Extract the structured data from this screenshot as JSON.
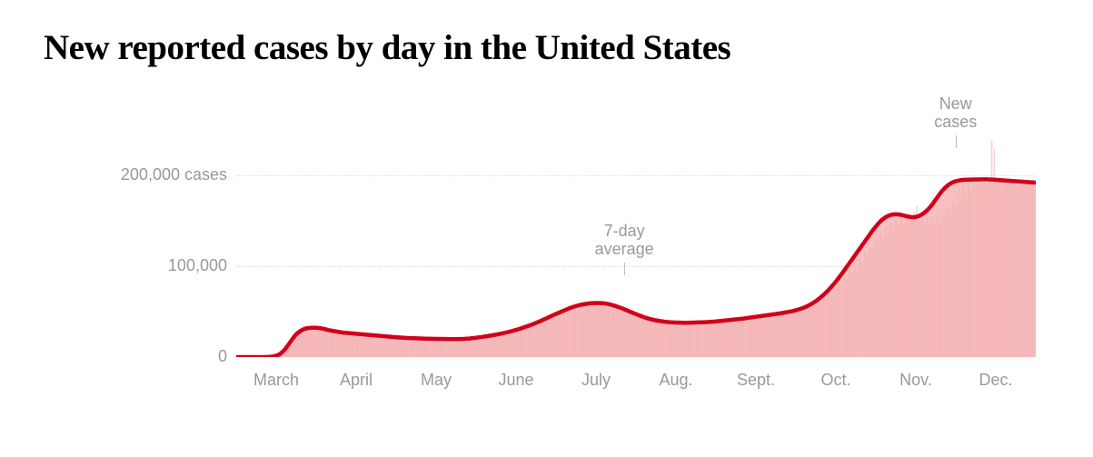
{
  "title": "New reported cases by day in the United States",
  "title_fontsize": 39,
  "chart": {
    "type": "area-line-with-bars",
    "background_color": "#ffffff",
    "grid_color": "#dcdcdc",
    "area_fill_color": "#f6bfc0",
    "bar_color": "#f3a9ab",
    "line_color": "#d0021b",
    "line_width": 4.5,
    "label_color": "#999999",
    "label_fontsize": 18,
    "ylim": [
      0,
      250000
    ],
    "yticks": [
      {
        "value": 0,
        "label": "0"
      },
      {
        "value": 100000,
        "label": "100,000"
      },
      {
        "value": 200000,
        "label": "200,000 cases"
      }
    ],
    "xlabels": [
      "March",
      "April",
      "May",
      "June",
      "July",
      "Aug.",
      "Sept.",
      "Oct.",
      "Nov.",
      "Dec."
    ],
    "annotations": [
      {
        "id": "avg",
        "text": "7-day\naverage",
        "x_index": 150,
        "y_value": 90000
      },
      {
        "id": "newcases",
        "text": "New\ncases",
        "x_index": 278,
        "y_value": 230000
      }
    ],
    "avg_series": [
      0,
      0,
      0,
      0,
      0,
      0,
      0,
      0,
      0,
      0,
      0,
      0,
      150,
      300,
      600,
      1200,
      2000,
      3500,
      6000,
      9000,
      13000,
      17000,
      21000,
      24500,
      27000,
      29000,
      30500,
      31500,
      32000,
      32200,
      32300,
      32200,
      32000,
      31500,
      31000,
      30200,
      29500,
      29000,
      28500,
      28000,
      27500,
      27000,
      26800,
      26500,
      26200,
      26000,
      25800,
      25500,
      25200,
      25000,
      24800,
      24500,
      24200,
      24000,
      23800,
      23500,
      23200,
      23000,
      22800,
      22500,
      22200,
      22000,
      21800,
      21600,
      21400,
      21200,
      21000,
      20900,
      20800,
      20700,
      20600,
      20500,
      20400,
      20300,
      20200,
      20150,
      20100,
      20050,
      20000,
      19950,
      19900,
      19850,
      19800,
      19800,
      19800,
      19800,
      19800,
      19900,
      20000,
      20200,
      20400,
      20700,
      21000,
      21400,
      21800,
      22200,
      22600,
      23000,
      23500,
      24000,
      24500,
      25000,
      25600,
      26200,
      26800,
      27500,
      28200,
      29000,
      29800,
      30600,
      31500,
      32500,
      33500,
      34500,
      35500,
      36600,
      37800,
      39000,
      40200,
      41500,
      42800,
      44200,
      45500,
      46800,
      48000,
      49200,
      50400,
      51600,
      52800,
      54000,
      55000,
      55900,
      56700,
      57400,
      58000,
      58500,
      58900,
      59200,
      59400,
      59500,
      59500,
      59400,
      59200,
      58800,
      58200,
      57500,
      56700,
      55800,
      54800,
      53700,
      52600,
      51400,
      50200,
      49000,
      47800,
      46700,
      45600,
      44500,
      43500,
      42600,
      41800,
      41100,
      40500,
      40000,
      39500,
      39100,
      38800,
      38500,
      38300,
      38100,
      38000,
      37900,
      37850,
      37800,
      37800,
      37850,
      37900,
      38000,
      38100,
      38200,
      38300,
      38400,
      38500,
      38700,
      38900,
      39100,
      39400,
      39700,
      40000,
      40300,
      40600,
      40900,
      41200,
      41500,
      41800,
      42100,
      42400,
      42800,
      43200,
      43600,
      44000,
      44400,
      44800,
      45200,
      45600,
      46000,
      46400,
      46800,
      47200,
      47600,
      48000,
      48500,
      49000,
      49500,
      50000,
      50600,
      51300,
      52100,
      53000,
      54000,
      55200,
      56500,
      58000,
      59700,
      61600,
      63700,
      66000,
      68500,
      71200,
      74100,
      77200,
      80500,
      84000,
      87700,
      91500,
      95500,
      99500,
      103500,
      107500,
      111500,
      115500,
      119500,
      123500,
      127500,
      131500,
      135500,
      139500,
      143000,
      146500,
      149500,
      152000,
      154000,
      155500,
      156500,
      157000,
      157200,
      157000,
      156500,
      155800,
      155000,
      154500,
      154000,
      154000,
      154500,
      155500,
      157000,
      159000,
      161500,
      164500,
      168000,
      172000,
      176000,
      180000,
      183500,
      186500,
      189000,
      191000,
      192500,
      193500,
      194200,
      194700,
      195000,
      195200,
      195300,
      195400,
      195450,
      195500,
      195550,
      195600,
      195600,
      195600,
      195500,
      195400,
      195200,
      195000,
      194800,
      194600,
      194400,
      194200,
      194000,
      193800,
      193600,
      193400,
      193200,
      193000,
      192800,
      192600,
      192400,
      192200,
      192000
    ],
    "daily_series": [
      0,
      0,
      0,
      0,
      0,
      0,
      0,
      0,
      0,
      0,
      0,
      0,
      200,
      400,
      800,
      1500,
      2500,
      4500,
      7500,
      11000,
      16000,
      20000,
      25000,
      28000,
      31000,
      33000,
      35000,
      32000,
      34000,
      30000,
      35000,
      33000,
      31000,
      34000,
      29000,
      33000,
      28000,
      31000,
      27000,
      30000,
      26000,
      29000,
      25000,
      28000,
      24000,
      27000,
      24000,
      26000,
      23000,
      26000,
      23000,
      25000,
      22500,
      25000,
      22000,
      24500,
      22000,
      24000,
      21500,
      23500,
      21000,
      23000,
      20500,
      22500,
      20200,
      22000,
      20000,
      21800,
      19800,
      21500,
      19600,
      21200,
      19500,
      21000,
      19400,
      20800,
      19300,
      20600,
      19200,
      20500,
      19100,
      20400,
      19050,
      20400,
      19000,
      20300,
      19000,
      20400,
      19100,
      20600,
      19300,
      21000,
      20000,
      21800,
      21000,
      22500,
      22000,
      23500,
      23000,
      24500,
      24000,
      25500,
      25000,
      27000,
      26000,
      28500,
      27500,
      30000,
      29000,
      31500,
      30500,
      33500,
      32500,
      35500,
      34500,
      37500,
      37000,
      40000,
      39500,
      42500,
      42000,
      45500,
      44500,
      48000,
      47500,
      50500,
      49800,
      52500,
      52000,
      55000,
      54000,
      57000,
      55500,
      58500,
      57500,
      59500,
      58800,
      60000,
      59200,
      60200,
      59500,
      60000,
      59000,
      59800,
      58000,
      58800,
      56500,
      57800,
      55000,
      56000,
      53000,
      54000,
      51000,
      52000,
      49000,
      50000,
      47000,
      48000,
      45500,
      46500,
      44000,
      45000,
      42500,
      43500,
      41500,
      42500,
      40800,
      41800,
      40200,
      41100,
      39700,
      40500,
      39300,
      40000,
      39000,
      39700,
      38800,
      39500,
      38700,
      39400,
      38600,
      39300,
      38600,
      39400,
      38700,
      39600,
      38900,
      40000,
      39300,
      40500,
      39700,
      41000,
      40100,
      41500,
      40500,
      42000,
      40900,
      42500,
      41300,
      43200,
      41800,
      44000,
      42300,
      44800,
      42800,
      45500,
      43300,
      46200,
      43800,
      47000,
      44500,
      48000,
      45200,
      49200,
      46200,
      50500,
      47500,
      52000,
      49000,
      54000,
      51000,
      56500,
      53500,
      59500,
      56500,
      63000,
      60000,
      67000,
      64000,
      71500,
      68500,
      76500,
      73500,
      82000,
      79000,
      88000,
      85000,
      94500,
      91000,
      101000,
      97500,
      108000,
      104500,
      115000,
      111500,
      122000,
      118500,
      129000,
      125500,
      136000,
      132000,
      142000,
      138000,
      147000,
      142500,
      150500,
      145500,
      152500,
      147000,
      153500,
      148000,
      154000,
      159000,
      166000,
      150000,
      156000,
      147000,
      153500,
      146000,
      153000,
      147000,
      155000,
      150000,
      159000,
      154000,
      164000,
      160000,
      171000,
      167000,
      179000,
      175000,
      187000,
      181000,
      190000,
      185000,
      192000,
      188000,
      193500,
      190000,
      194500,
      191000,
      195000,
      238000,
      229000,
      192000,
      195200,
      191500,
      195100,
      191000,
      195000,
      190500,
      194800,
      190200,
      194500,
      190000,
      194200,
      189800,
      194000,
      189600,
      193800
    ],
    "n_points": 310
  }
}
